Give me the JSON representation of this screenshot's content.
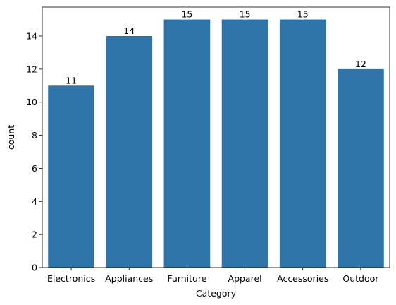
{
  "chart_data": {
    "type": "bar",
    "categories": [
      "Electronics",
      "Appliances",
      "Furniture",
      "Apparel",
      "Accessories",
      "Outdoor"
    ],
    "values": [
      11,
      14,
      15,
      15,
      15,
      12
    ],
    "data_labels": [
      "11",
      "14",
      "15",
      "15",
      "15",
      "12"
    ],
    "title": "",
    "xlabel": "Category",
    "ylabel": "count",
    "ylim": [
      0,
      15.75
    ],
    "yticks": [
      0,
      2,
      4,
      6,
      8,
      10,
      12,
      14
    ],
    "bar_color": "#2e74a8",
    "grid": false,
    "legend": "none"
  }
}
